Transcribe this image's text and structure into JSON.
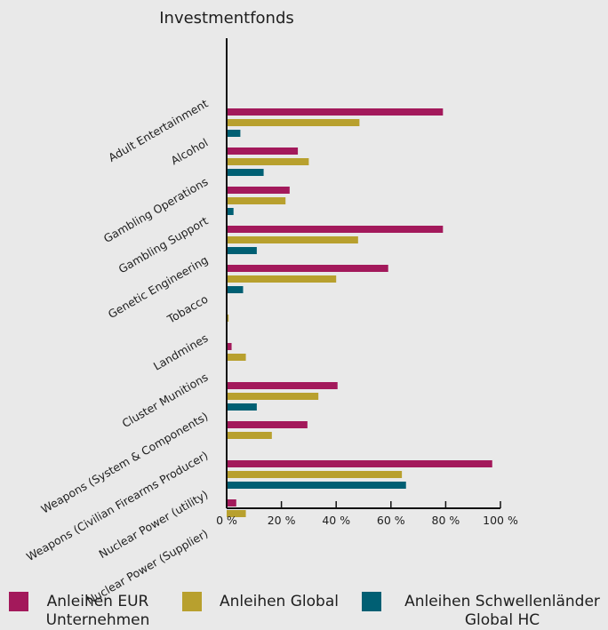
{
  "chart_data": {
    "type": "bar",
    "orientation": "horizontal",
    "title": "Investmentfonds",
    "xlabel": "",
    "ylabel": "",
    "xlim": [
      0,
      100
    ],
    "x_ticks": [
      "0 %",
      "20 %",
      "40 %",
      "60 %",
      "80 %",
      "100 %"
    ],
    "grid": false,
    "legend_position": "bottom",
    "categories": [
      "Adult Entertainment",
      "Alcohol",
      "Gambling Operations",
      "Gambling Support",
      "Genetic Engineering",
      "Tobacco",
      "Landmines",
      "Cluster Munitions",
      "Weapons (System & Components)",
      "Weapons (Civilian Firearms Producer)",
      "Nuclear Power (utility)",
      "Nuclear Power (Supplier)"
    ],
    "series": [
      {
        "name": "Anleihen EUR Unternehmen",
        "color": "#a3195b",
        "values": [
          0,
          79,
          26,
          23,
          79,
          59,
          0,
          1.8,
          40.5,
          29.5,
          97,
          3.5
        ]
      },
      {
        "name": "Anleihen Global",
        "color": "#b8a02e",
        "values": [
          0.2,
          48.5,
          30,
          21.5,
          48,
          40,
          0.7,
          7,
          33.5,
          16.5,
          64,
          7
        ]
      },
      {
        "name": "Anleihen Schwellenländer Global HC",
        "color": "#005f73",
        "values": [
          0,
          5,
          13.5,
          2.5,
          11,
          6,
          0,
          0,
          11,
          0,
          65.5,
          0
        ]
      }
    ]
  },
  "legend": [
    {
      "lines": [
        "Anleihen EUR",
        "Unternehmen"
      ],
      "color": "#a3195b"
    },
    {
      "lines": [
        "Anleihen Global"
      ],
      "color": "#b8a02e"
    },
    {
      "lines": [
        "Anleihen Schwellenländer",
        "Global HC"
      ],
      "color": "#005f73"
    }
  ]
}
